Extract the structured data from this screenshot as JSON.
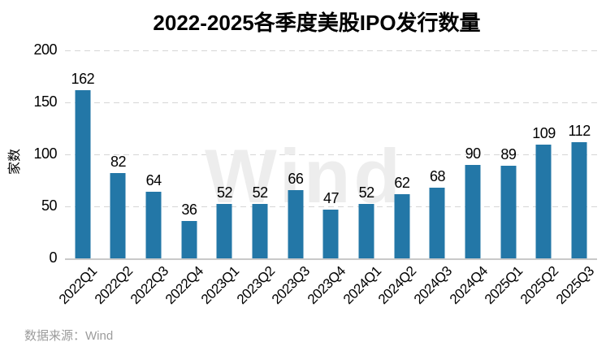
{
  "page": {
    "background": "#ffffff"
  },
  "chart_data": {
    "type": "bar",
    "title": "2022-2025各季度美股IPO发行数量",
    "xlabel": "",
    "ylabel": "家数",
    "categories": [
      "2022Q1",
      "2022Q2",
      "2022Q3",
      "2022Q4",
      "2023Q1",
      "2023Q2",
      "2023Q3",
      "2023Q4",
      "2024Q1",
      "2024Q2",
      "2024Q3",
      "2024Q4",
      "2025Q1",
      "2025Q2",
      "2025Q3"
    ],
    "values": [
      162,
      82,
      64,
      36,
      52,
      52,
      66,
      47,
      52,
      62,
      68,
      90,
      89,
      109,
      112
    ],
    "ylim": [
      0,
      200
    ],
    "yticks": [
      0,
      50,
      100,
      150,
      200
    ],
    "grid": "horizontal-dashed",
    "legend_position": "none",
    "value_labels_shown": true,
    "bar_color": "#2377a7"
  },
  "watermark": {
    "text": "Wind",
    "color": "#ededed"
  },
  "footer": {
    "source_label": "数据来源：Wind"
  },
  "colors": {
    "bar": "#2377a7",
    "gridline": "#d6d6d6",
    "axis_line": "#c9c9c9",
    "text": "#000000",
    "muted_text": "#9c9c9c"
  }
}
